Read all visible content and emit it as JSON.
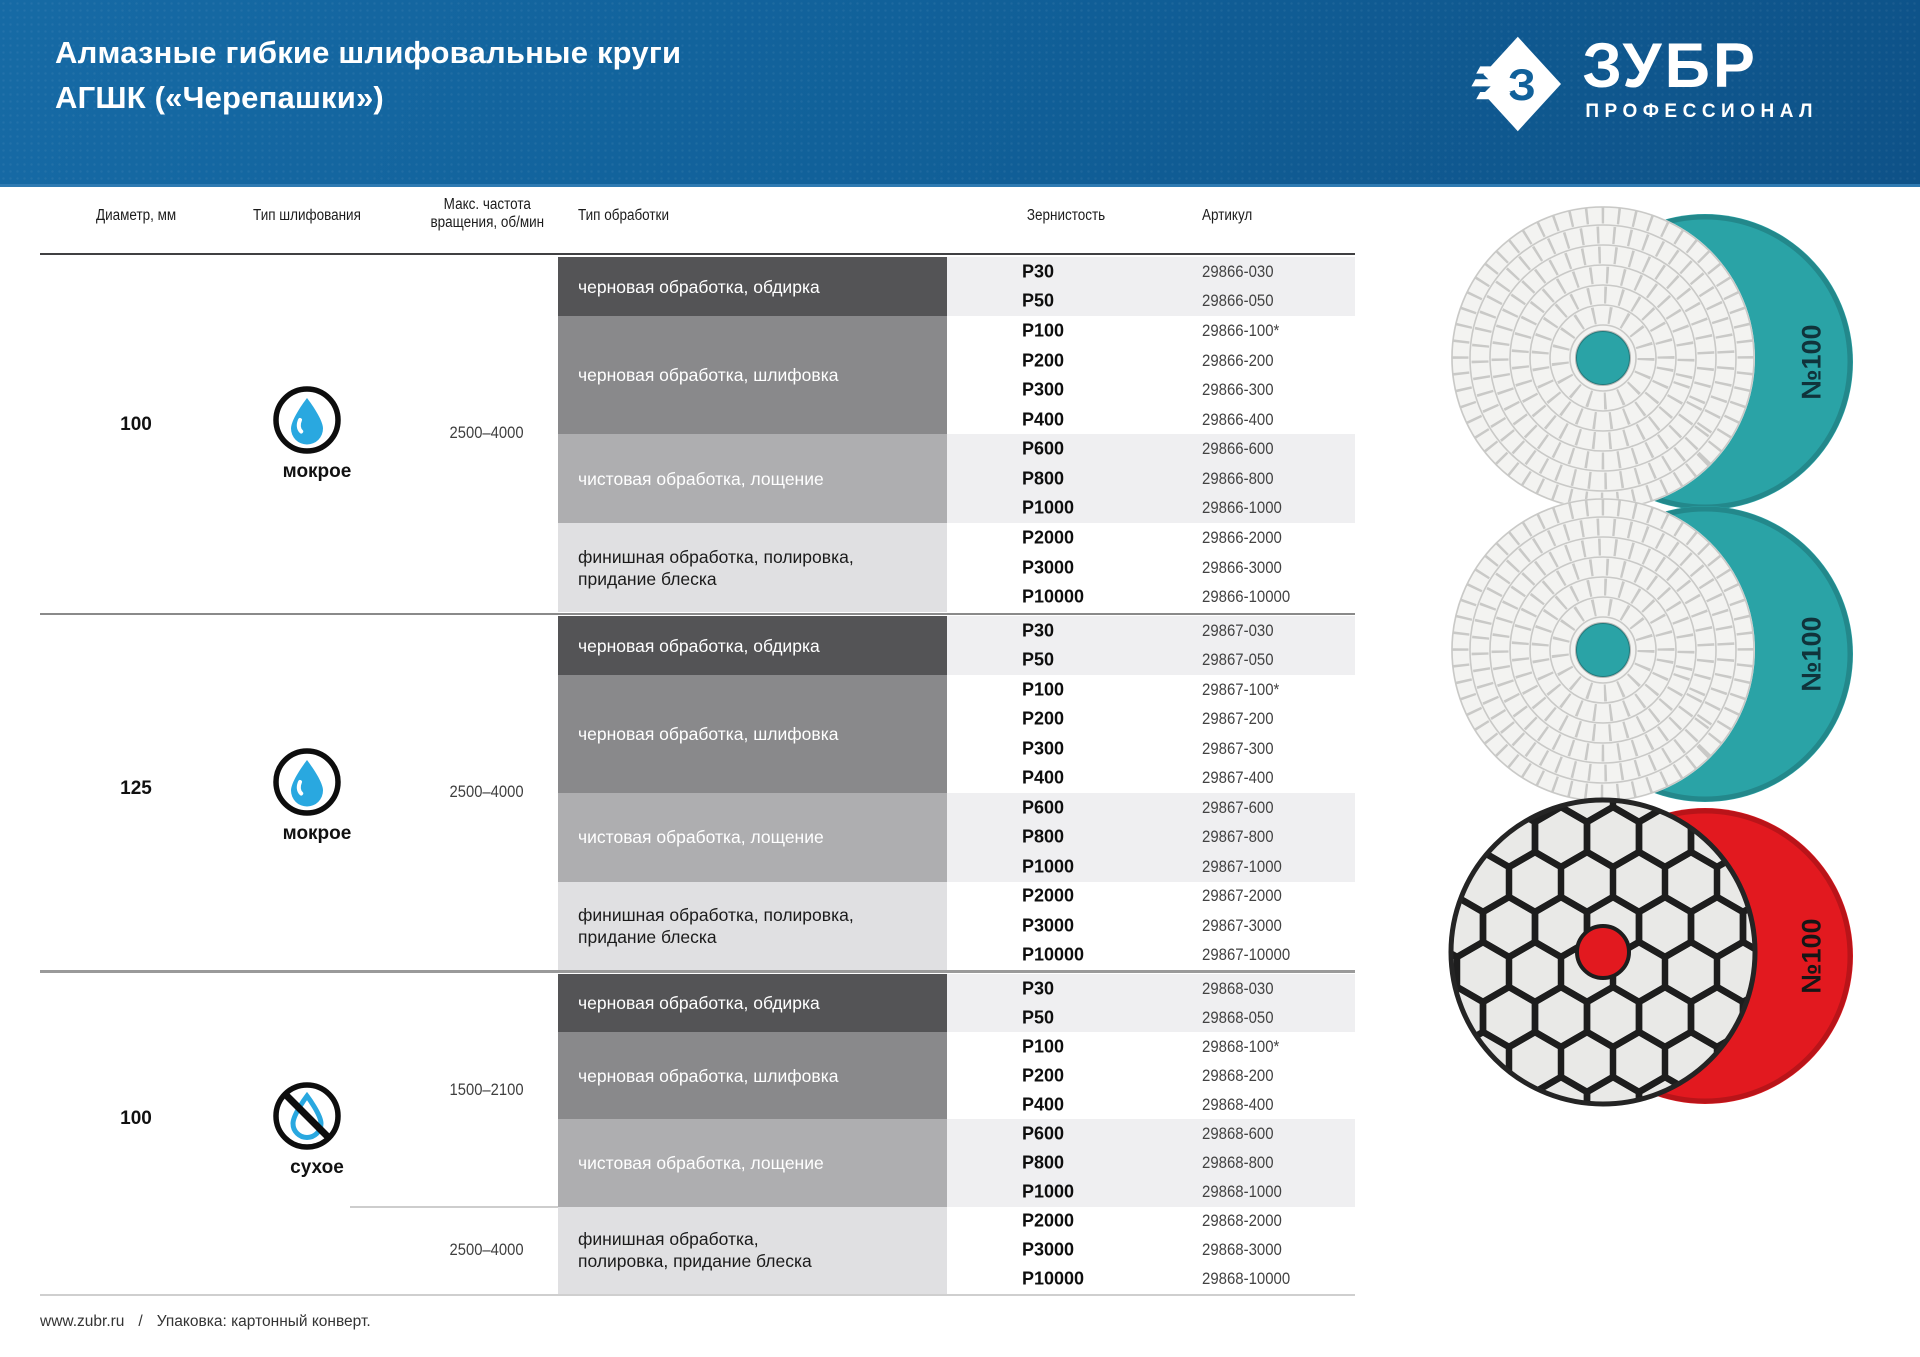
{
  "header": {
    "title_line1": "Алмазные гибкие шлифовальные круги",
    "title_line2": "АГШК («Черепашки»)",
    "brand": "ЗУБР",
    "brand_sub": "ПРОФЕССИОНАЛ"
  },
  "table": {
    "columns": [
      "Диаметр, мм",
      "Тип шлифования",
      "Макс. частота\nвращения, об/мин",
      "Тип обработки",
      "Зернистость",
      "Артикул"
    ]
  },
  "groups": [
    {
      "diameter": "100",
      "grinding_type": "мокрое",
      "icon": "water-drop-icon",
      "rpm": "2500–4000",
      "bands": [
        {
          "label": "черновая обработка, обдирка",
          "rows": [
            {
              "grit": "P30",
              "article": "29866-030"
            },
            {
              "grit": "P50",
              "article": "29866-050"
            }
          ]
        },
        {
          "label": "черновая обработка, шлифовка",
          "rows": [
            {
              "grit": "P100",
              "article": "29866-100*"
            },
            {
              "grit": "P200",
              "article": "29866-200"
            },
            {
              "grit": "P300",
              "article": "29866-300"
            },
            {
              "grit": "P400",
              "article": "29866-400"
            }
          ]
        },
        {
          "label": "чистовая обработка, лощение",
          "rows": [
            {
              "grit": "P600",
              "article": "29866-600"
            },
            {
              "grit": "P800",
              "article": "29866-800"
            },
            {
              "grit": "P1000",
              "article": "29866-1000"
            }
          ]
        },
        {
          "label": "финишная обработка, полировка,\nпридание блеска",
          "rows": [
            {
              "grit": "P2000",
              "article": "29866-2000"
            },
            {
              "grit": "P3000",
              "article": "29866-3000"
            },
            {
              "grit": "P10000",
              "article": "29866-10000"
            }
          ]
        }
      ]
    },
    {
      "diameter": "125",
      "grinding_type": "мокрое",
      "icon": "water-drop-icon",
      "rpm": "2500–4000",
      "bands": [
        {
          "label": "черновая обработка, обдирка",
          "rows": [
            {
              "grit": "P30",
              "article": "29867-030"
            },
            {
              "grit": "P50",
              "article": "29867-050"
            }
          ]
        },
        {
          "label": "черновая обработка, шлифовка",
          "rows": [
            {
              "grit": "P100",
              "article": "29867-100*"
            },
            {
              "grit": "P200",
              "article": "29867-200"
            },
            {
              "grit": "P300",
              "article": "29867-300"
            },
            {
              "grit": "P400",
              "article": "29867-400"
            }
          ]
        },
        {
          "label": "чистовая обработка, лощение",
          "rows": [
            {
              "grit": "P600",
              "article": "29867-600"
            },
            {
              "grit": "P800",
              "article": "29867-800"
            },
            {
              "grit": "P1000",
              "article": "29867-1000"
            }
          ]
        },
        {
          "label": "финишная обработка, полировка,\nпридание блеска",
          "rows": [
            {
              "grit": "P2000",
              "article": "29867-2000"
            },
            {
              "grit": "P3000",
              "article": "29867-3000"
            },
            {
              "grit": "P10000",
              "article": "29867-10000"
            }
          ]
        }
      ]
    },
    {
      "diameter": "100",
      "grinding_type": "сухое",
      "icon": "no-water-drop-icon",
      "rpm": "1500–2100",
      "rpm2": "2500–4000",
      "bands": [
        {
          "label": "черновая обработка, обдирка",
          "rows": [
            {
              "grit": "P30",
              "article": "29868-030"
            },
            {
              "grit": "P50",
              "article": "29868-050"
            }
          ]
        },
        {
          "label": "черновая обработка, шлифовка",
          "rows": [
            {
              "grit": "P100",
              "article": "29868-100*"
            },
            {
              "grit": "P200",
              "article": "29868-200"
            },
            {
              "grit": "P400",
              "article": "29868-400"
            }
          ]
        },
        {
          "label": "чистовая обработка, лощение",
          "rows": [
            {
              "grit": "P600",
              "article": "29868-600"
            },
            {
              "grit": "P800",
              "article": "29868-800"
            },
            {
              "grit": "P1000",
              "article": "29868-1000"
            }
          ]
        },
        {
          "label": "финишная обработка,\nполировка, придание блеска",
          "rows": [
            {
              "grit": "P2000",
              "article": "29868-2000"
            },
            {
              "grit": "P3000",
              "article": "29868-3000"
            },
            {
              "grit": "P10000",
              "article": "29868-10000"
            }
          ]
        }
      ]
    }
  ],
  "products": [
    {
      "label": "№100",
      "pad": "spiral",
      "surface": "white",
      "backing_color": "#2aa3a6",
      "label_color": "#10333b"
    },
    {
      "label": "№100",
      "pad": "spiral",
      "surface": "white",
      "backing_color": "#2aa3a6",
      "label_color": "#10333b"
    },
    {
      "label": "№100",
      "pad": "hex",
      "surface": "graphite",
      "backing_color": "#e2191f",
      "label_color": "#161616"
    }
  ],
  "footer": {
    "site": "www.zubr.ru",
    "separator": "/",
    "packaging": "Упаковка: картонный конверт."
  },
  "colors": {
    "header_blue": "#11619a",
    "band_dark": "#545456",
    "band_medium": "#89898b",
    "band_light": "#aeaeb0",
    "band_lightest": "#e0e0e2",
    "row_shade": "#efeff1",
    "drop_blue": "#29a8e0"
  }
}
